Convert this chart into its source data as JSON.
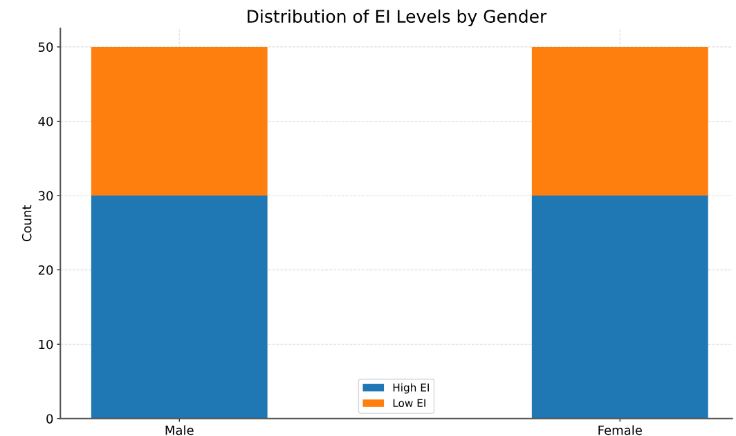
{
  "chart_data": {
    "type": "bar",
    "title": "Distribution of EI Levels by Gender",
    "ylabel": "Count",
    "categories": [
      "Male",
      "Female"
    ],
    "stacked": true,
    "series": [
      {
        "name": "High EI",
        "color": "#1f77b4",
        "values": [
          30,
          30
        ]
      },
      {
        "name": "Low EI",
        "color": "#ff7f0e",
        "values": [
          20,
          20
        ]
      }
    ],
    "ylim": [
      0,
      52.5
    ],
    "yticks": [
      0,
      10,
      20,
      30,
      40,
      50
    ],
    "grid": true,
    "legend": "bottom"
  }
}
